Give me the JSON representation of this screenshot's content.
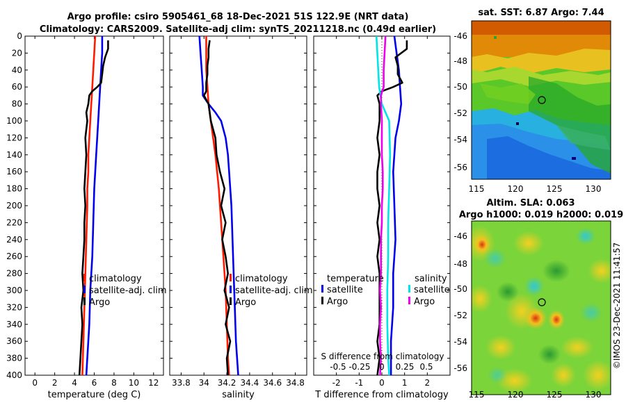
{
  "header": {
    "line1": "Argo profile: csiro 5905461_68 18-Dec-2021 51S 122.9E (NRT data)",
    "line2": "Climatology: CARS2009. Satellite-adj clim: synTS_20211218.nc (0.49d earlier)"
  },
  "colors": {
    "climatology": "#ff1a00",
    "satellite": "#0000ee",
    "argo": "#000000",
    "sal_satellite": "#00e5e5",
    "sal_argo": "#ee00ee"
  },
  "chart_data": [
    {
      "id": "temperature",
      "type": "line",
      "xlabel": "temperature (deg C)",
      "ylabel": "",
      "xlim": [
        -1,
        13
      ],
      "ylim": [
        400,
        0
      ],
      "xticks": [
        0,
        2,
        4,
        6,
        8,
        10,
        12
      ],
      "yticks": [
        0,
        20,
        40,
        60,
        80,
        100,
        120,
        140,
        160,
        180,
        200,
        220,
        240,
        260,
        280,
        300,
        320,
        340,
        360,
        380,
        400
      ],
      "legend": [
        "climatology",
        "satellite-adj. clim",
        "Argo"
      ],
      "series": [
        {
          "name": "climatology",
          "color_key": "climatology",
          "depth": [
            0,
            20,
            40,
            60,
            80,
            100,
            120,
            140,
            160,
            180,
            200,
            240,
            280,
            320,
            360,
            400
          ],
          "values": [
            6.1,
            6.0,
            5.9,
            5.8,
            5.7,
            5.6,
            5.5,
            5.4,
            5.4,
            5.3,
            5.3,
            5.2,
            5.1,
            5.0,
            4.9,
            4.8
          ]
        },
        {
          "name": "satellite-adj. clim",
          "color_key": "satellite",
          "depth": [
            0,
            20,
            40,
            60,
            80,
            100,
            140,
            180,
            220,
            260,
            300,
            340,
            380,
            400
          ],
          "values": [
            6.8,
            6.8,
            6.7,
            6.6,
            6.5,
            6.4,
            6.2,
            6.0,
            5.9,
            5.8,
            5.6,
            5.5,
            5.3,
            5.2
          ]
        },
        {
          "name": "Argo",
          "color_key": "argo",
          "depth": [
            5,
            15,
            25,
            35,
            45,
            55,
            60,
            65,
            70,
            80,
            90,
            100,
            120,
            140,
            160,
            180,
            200,
            220,
            240,
            260,
            280,
            300,
            320,
            340,
            360,
            380,
            400
          ],
          "values": [
            7.4,
            7.4,
            7.1,
            6.9,
            6.8,
            6.7,
            6.3,
            5.8,
            5.5,
            5.4,
            5.2,
            5.3,
            5.1,
            5.2,
            5.1,
            5.0,
            5.1,
            5.0,
            5.0,
            4.9,
            4.8,
            4.9,
            4.7,
            4.8,
            4.7,
            4.6,
            4.5
          ]
        }
      ]
    },
    {
      "id": "salinity",
      "type": "line",
      "xlabel": "salinity",
      "xlim": [
        33.7,
        34.9
      ],
      "ylim": [
        400,
        0
      ],
      "xticks": [
        33.8,
        34.0,
        34.2,
        34.4,
        34.6,
        34.8
      ],
      "xtick_labels": [
        "33.8",
        "34",
        "34.2",
        "34.4",
        "34.6",
        "34.8"
      ],
      "legend": [
        "climatology",
        "satellite-adj. clim",
        "Argo"
      ],
      "series": [
        {
          "name": "climatology",
          "color_key": "climatology",
          "depth": [
            0,
            20,
            40,
            60,
            80,
            100,
            140,
            180,
            220,
            260,
            300,
            340,
            380,
            400
          ],
          "values": [
            34.02,
            34.02,
            34.02,
            34.03,
            34.04,
            34.06,
            34.1,
            34.13,
            34.15,
            34.17,
            34.19,
            34.2,
            34.21,
            34.22
          ]
        },
        {
          "name": "satellite-adj. clim",
          "color_key": "satellite",
          "depth": [
            0,
            20,
            40,
            60,
            70,
            80,
            90,
            100,
            120,
            140,
            160,
            200,
            240,
            280,
            320,
            360,
            400
          ],
          "values": [
            33.96,
            33.97,
            33.98,
            33.99,
            33.99,
            34.04,
            34.1,
            34.15,
            34.19,
            34.21,
            34.22,
            34.24,
            34.25,
            34.26,
            34.27,
            34.28,
            34.3
          ]
        },
        {
          "name": "Argo",
          "color_key": "argo",
          "depth": [
            5,
            15,
            25,
            35,
            45,
            55,
            65,
            70,
            80,
            100,
            120,
            140,
            160,
            180,
            200,
            220,
            240,
            260,
            280,
            300,
            320,
            340,
            360,
            380,
            400
          ],
          "values": [
            34.05,
            34.04,
            34.04,
            34.03,
            34.03,
            34.02,
            34.02,
            34.0,
            34.04,
            34.06,
            34.1,
            34.11,
            34.14,
            34.18,
            34.15,
            34.19,
            34.16,
            34.19,
            34.21,
            34.18,
            34.22,
            34.19,
            34.23,
            34.2,
            34.21
          ]
        }
      ]
    },
    {
      "id": "differences",
      "type": "line",
      "xlabel": "T difference from climatology",
      "xlim": [
        -3,
        3
      ],
      "ylim": [
        400,
        0
      ],
      "xticks": [
        -2,
        -1,
        0,
        1,
        2
      ],
      "xtick_labels": [
        "-2",
        "-1",
        "0",
        "1",
        "2"
      ],
      "secondary_xlabel": "S difference from climatology",
      "secondary_xticks": [
        "-0.5",
        "-0.25",
        "0",
        "0.25",
        "0.5"
      ],
      "legend_left_title": "temperature",
      "legend_right_title": "salinity",
      "legend": [
        "satellite",
        "Argo",
        "satellite",
        "Argo"
      ],
      "series": [
        {
          "name": "T satellite",
          "color_key": "satellite",
          "depth": [
            0,
            20,
            40,
            60,
            80,
            100,
            120,
            160,
            200,
            240,
            280,
            320,
            360,
            400
          ],
          "values": [
            0.55,
            0.65,
            0.75,
            0.8,
            0.85,
            0.75,
            0.6,
            0.5,
            0.55,
            0.6,
            0.5,
            0.5,
            0.4,
            0.4
          ]
        },
        {
          "name": "T Argo",
          "color_key": "argo",
          "depth": [
            5,
            15,
            25,
            35,
            45,
            55,
            60,
            65,
            70,
            80,
            100,
            120,
            140,
            160,
            180,
            200,
            220,
            240,
            260,
            280,
            300,
            320,
            340,
            360,
            380,
            400
          ],
          "values": [
            1.1,
            1.1,
            0.6,
            0.7,
            0.7,
            0.9,
            0.5,
            0.0,
            -0.2,
            -0.1,
            -0.1,
            -0.2,
            -0.1,
            -0.2,
            -0.2,
            -0.1,
            -0.2,
            -0.1,
            -0.2,
            -0.1,
            -0.1,
            -0.1,
            -0.1,
            -0.2,
            -0.1,
            -0.2
          ]
        },
        {
          "name": "S satellite",
          "color_key": "sal_satellite",
          "depth": [
            0,
            20,
            40,
            60,
            80,
            100,
            140,
            180,
            220,
            260,
            300,
            340,
            380,
            400
          ],
          "values": [
            -0.06,
            -0.05,
            -0.04,
            -0.03,
            0.0,
            0.08,
            0.09,
            0.08,
            0.07,
            0.07,
            0.06,
            0.06,
            0.07,
            0.08
          ]
        },
        {
          "name": "S Argo",
          "color_key": "sal_argo",
          "depth": [
            0,
            20,
            40,
            60,
            70,
            80,
            100,
            120,
            140,
            160,
            180,
            200,
            220,
            240,
            260,
            280,
            300,
            320,
            340,
            360,
            380,
            400
          ],
          "values": [
            0.04,
            0.03,
            0.02,
            0.02,
            -0.01,
            -0.01,
            0.0,
            0.0,
            0.0,
            0.01,
            0.01,
            0.0,
            0.0,
            -0.01,
            -0.01,
            -0.01,
            -0.02,
            -0.01,
            -0.02,
            -0.02,
            -0.01,
            -0.02
          ]
        }
      ]
    }
  ],
  "maps": [
    {
      "id": "sst-map",
      "title": "sat. SST: 6.87 Argo: 7.44",
      "xticks": [
        "115",
        "120",
        "125",
        "130"
      ],
      "yticks": [
        "-46",
        "-48",
        "-50",
        "-52",
        "-54",
        "-56"
      ],
      "marker": {
        "lon": 122.9,
        "lat": -51
      }
    },
    {
      "id": "sla-map",
      "title_line1": "Altim. SLA: 0.063",
      "title_line2": "Argo h1000: 0.019 h2000: 0.019",
      "xticks": [
        "115",
        "120",
        "125",
        "130"
      ],
      "yticks": [
        "-46",
        "-48",
        "-50",
        "-52",
        "-54",
        "-56"
      ],
      "marker": {
        "lon": 122.9,
        "lat": -51
      }
    }
  ],
  "side_label": "©IMOS 23-Dec-2021 11:41:57"
}
